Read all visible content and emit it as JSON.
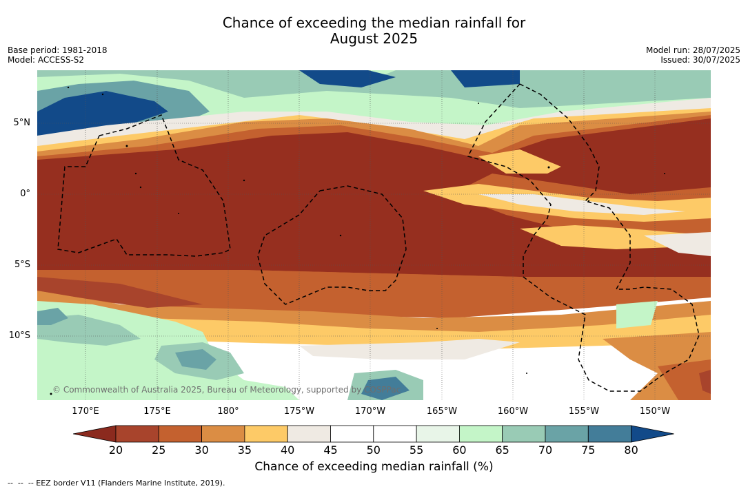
{
  "title_line1": "Chance of exceeding the median rainfall for",
  "title_line2": "August 2025",
  "base_period": "Base period: 1981-2018",
  "model": "Model: ACCESS-S2",
  "model_run": "Model run: 28/07/2025",
  "issued": "Issued: 30/07/2025",
  "lat_labels": [
    "5°N",
    "0°",
    "5°S",
    "10°S"
  ],
  "lon_labels": [
    "170°E",
    "175°E",
    "180°",
    "175°W",
    "170°W",
    "165°W",
    "160°W",
    "155°W",
    "150°W"
  ],
  "copyright": "© Commonwealth of Australia 2025, Bureau of Meteorology, supported by COSPPac",
  "colorbar": {
    "label": "Chance of exceeding median rainfall (%)",
    "ticks": [
      "20",
      "25",
      "30",
      "35",
      "40",
      "45",
      "50",
      "55",
      "60",
      "65",
      "70",
      "75",
      "80"
    ],
    "colors": [
      "#8b2a1e",
      "#a8442c",
      "#c4612f",
      "#db8d44",
      "#fdca67",
      "#efeae3",
      "#ffffff",
      "#ffffff",
      "#e8f5e8",
      "#c4f5c8",
      "#99cbb5",
      "#6aa3a6",
      "#437d99",
      "#124a89"
    ]
  },
  "footnote": "--  --  -- EEZ border V11 (Flanders Marine Institute, 2019)."
}
